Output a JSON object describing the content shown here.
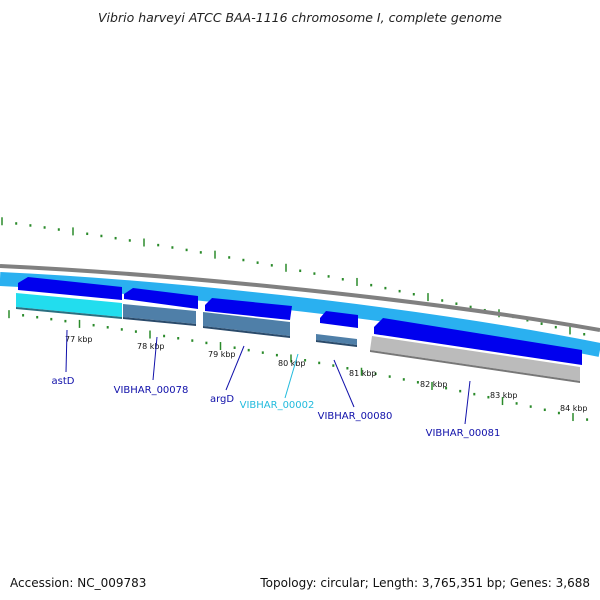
{
  "title": "Vibrio harveyi ATCC BAA-1116 chromosome I, complete genome",
  "footer": {
    "accession": "Accession: NC_009783",
    "info": "Topology: circular; Length: 3,765,351 bp; Genes: 3,688"
  },
  "colors": {
    "backbone": "#808080",
    "cds_forward": "#0000ee",
    "strand_band": "#2ab0f0",
    "gene_cyan": "#22ddee",
    "gene_steel": "#4f7fa8",
    "gene_gray": "#bbbbbb",
    "tick": "#2a8a2a",
    "label_blue": "#1010aa",
    "label_cyan": "#22bbdd"
  },
  "kbp_ticks": [
    "77 kbp",
    "78 kbp",
    "79 kbp",
    "80 kbp",
    "81 kbp",
    "82 kbp",
    "83 kbp",
    "84 kbp"
  ],
  "genes": [
    {
      "id": "astD",
      "label": "astD",
      "color": "label_blue"
    },
    {
      "id": "VIBHAR_00078",
      "label": "VIBHAR_00078",
      "color": "label_blue"
    },
    {
      "id": "argD",
      "label": "argD",
      "color": "label_blue"
    },
    {
      "id": "VIBHAR_00002",
      "label": "VIBHAR_00002",
      "color": "label_cyan"
    },
    {
      "id": "VIBHAR_00080",
      "label": "VIBHAR_00080",
      "color": "label_blue"
    },
    {
      "id": "VIBHAR_00081",
      "label": "VIBHAR_00081",
      "color": "label_blue"
    }
  ]
}
